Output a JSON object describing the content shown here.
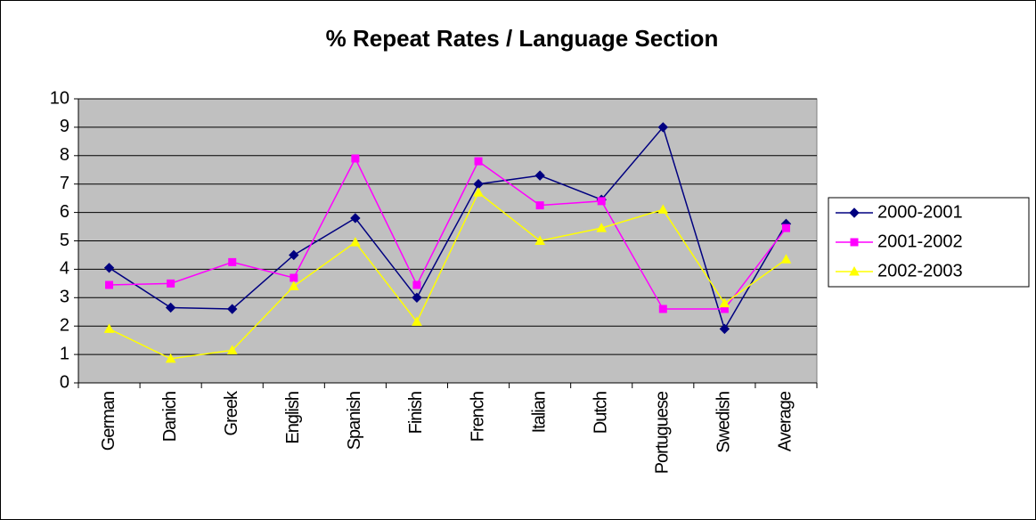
{
  "chart_data": {
    "type": "line",
    "title": "% Repeat Rates / Language Section",
    "categories": [
      "German",
      "Danich",
      "Greek",
      "English",
      "Spanish",
      "Finish",
      "French",
      "Italian",
      "Dutch",
      "Portuguese",
      "Swedish",
      "Average"
    ],
    "series": [
      {
        "name": "2000-2001",
        "color": "#000080",
        "marker": "diamond",
        "values": [
          4.05,
          2.65,
          2.6,
          4.5,
          5.8,
          3.0,
          7.0,
          7.3,
          6.45,
          9.0,
          1.9,
          5.6
        ]
      },
      {
        "name": "2001-2002",
        "color": "#ff00ff",
        "marker": "square",
        "values": [
          3.45,
          3.5,
          4.25,
          3.7,
          7.9,
          3.45,
          7.8,
          6.25,
          6.4,
          2.6,
          2.6,
          5.45
        ]
      },
      {
        "name": "2002-2003",
        "color": "#ffff00",
        "marker": "triangle",
        "values": [
          1.9,
          0.85,
          1.15,
          3.4,
          4.95,
          2.15,
          6.7,
          5.0,
          5.45,
          6.1,
          2.8,
          4.35
        ]
      }
    ],
    "ylim": [
      0,
      10
    ],
    "yticks": [
      0,
      1,
      2,
      3,
      4,
      5,
      6,
      7,
      8,
      9,
      10
    ],
    "grid": true,
    "legend": "right"
  }
}
